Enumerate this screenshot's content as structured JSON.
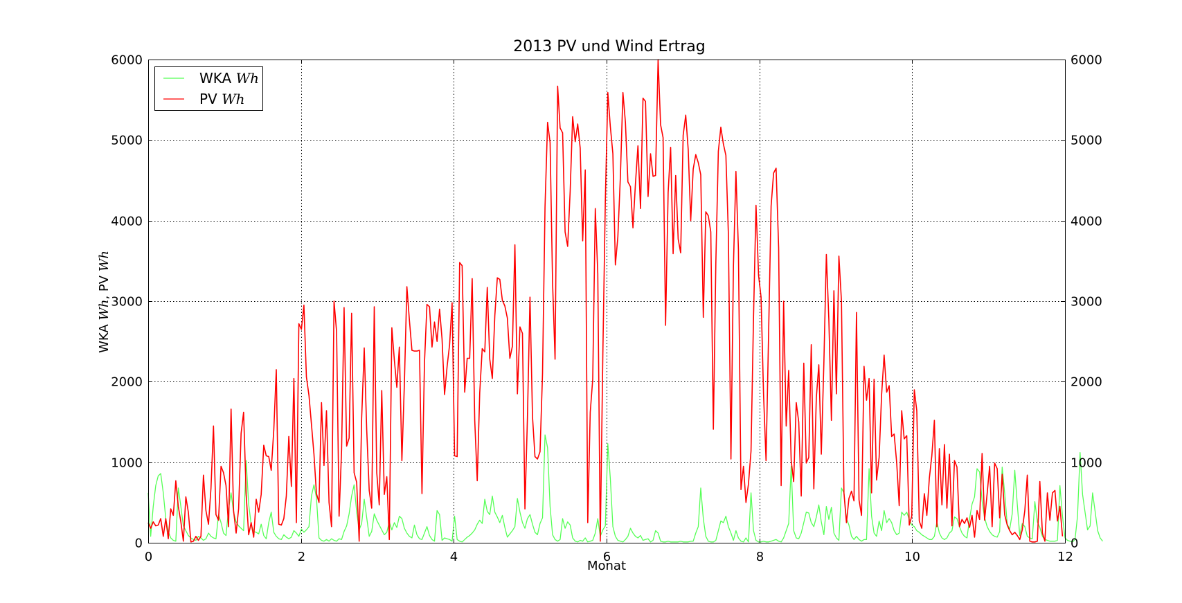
{
  "chart_data": {
    "type": "line",
    "title": "2013 PV und Wind Ertrag",
    "xlabel": "Monat",
    "ylabel": "WKA Wh, PV Wh",
    "ylabel_parts": {
      "pre1": "WKA ",
      "math1": "Wh",
      "mid": ", PV ",
      "math2": "Wh"
    },
    "xlim": [
      0,
      12
    ],
    "ylim": [
      0,
      6000
    ],
    "x_ticks": [
      "0",
      "2",
      "4",
      "6",
      "8",
      "10",
      "12"
    ],
    "y_ticks": [
      "0",
      "1000",
      "2000",
      "3000",
      "4000",
      "5000",
      "6000"
    ],
    "y_ticks_right": [
      "0",
      "1000",
      "2000",
      "3000",
      "4000",
      "5000",
      "6000"
    ],
    "grid": true,
    "legend_position": "top-left",
    "x_step": 0.0328767,
    "series": [
      {
        "name": "WKA Wh",
        "label_text": "WKA ",
        "label_math": "Wh",
        "color": "#55ff55",
        "values": [
          620,
          80,
          450,
          710,
          830,
          860,
          620,
          300,
          140,
          60,
          30,
          20,
          680,
          450,
          210,
          150,
          90,
          60,
          40,
          30,
          80,
          60,
          30,
          50,
          120,
          80,
          60,
          50,
          350,
          250,
          120,
          90,
          420,
          620,
          380,
          260,
          210,
          180,
          150,
          1020,
          480,
          230,
          140,
          130,
          110,
          230,
          90,
          50,
          250,
          380,
          130,
          80,
          50,
          40,
          100,
          70,
          50,
          70,
          150,
          120,
          80,
          170,
          130,
          160,
          200,
          580,
          720,
          560,
          60,
          30,
          20,
          40,
          20,
          50,
          30,
          20,
          50,
          40,
          140,
          210,
          360,
          580,
          720,
          380,
          160,
          240,
          540,
          310,
          80,
          140,
          360,
          280,
          220,
          160,
          100,
          130,
          260,
          160,
          250,
          190,
          330,
          300,
          180,
          120,
          80,
          60,
          220,
          100,
          50,
          40,
          120,
          200,
          90,
          40,
          20,
          400,
          350,
          30,
          60,
          50,
          40,
          20,
          330,
          40,
          20,
          10,
          40,
          70,
          90,
          120,
          160,
          230,
          280,
          240,
          540,
          390,
          350,
          580,
          380,
          320,
          250,
          340,
          190,
          70,
          110,
          150,
          200,
          550,
          380,
          250,
          180,
          300,
          350,
          230,
          130,
          100,
          240,
          310,
          1340,
          1180,
          450,
          100,
          40,
          20,
          40,
          300,
          180,
          260,
          220,
          60,
          20,
          10,
          30,
          20,
          60,
          10,
          20,
          30,
          120,
          300,
          80,
          160,
          210,
          1230,
          800,
          200,
          80,
          30,
          20,
          10,
          40,
          80,
          180,
          120,
          80,
          60,
          90,
          30,
          40,
          50,
          10,
          30,
          150,
          120,
          20,
          10,
          10,
          20,
          10,
          10,
          10,
          10,
          20,
          10,
          10,
          10,
          20,
          20,
          120,
          200,
          680,
          300,
          80,
          20,
          10,
          10,
          30,
          150,
          270,
          250,
          330,
          200,
          120,
          30,
          150,
          60,
          20,
          10,
          60,
          10,
          620,
          150,
          30,
          10,
          10,
          20,
          10,
          10,
          20,
          30,
          40,
          20,
          10,
          60,
          150,
          240,
          950,
          150,
          60,
          50,
          120,
          250,
          380,
          370,
          250,
          200,
          320,
          470,
          260,
          100,
          450,
          290,
          440,
          120,
          60,
          30,
          680,
          620,
          300,
          220,
          80,
          40,
          80,
          40,
          20,
          40,
          40,
          920,
          330,
          120,
          80,
          270,
          150,
          400,
          250,
          300,
          250,
          150,
          100,
          120,
          380,
          340,
          380,
          290,
          220,
          200,
          150,
          130,
          100,
          80,
          60,
          40,
          40,
          80,
          260,
          120,
          60,
          40,
          60,
          120,
          150,
          320,
          300,
          200,
          120,
          80,
          60,
          300,
          480,
          570,
          920,
          880,
          520,
          310,
          200,
          140,
          100,
          80,
          70,
          140,
          940,
          620,
          230,
          170,
          360,
          900,
          480,
          90,
          240,
          200,
          80,
          60,
          50,
          510,
          260,
          190,
          80,
          40,
          30,
          20,
          20,
          20,
          30,
          710,
          330,
          60,
          30,
          20,
          10,
          40,
          330,
          1120,
          600,
          380,
          160,
          210,
          620,
          390,
          150,
          60,
          20
        ]
      },
      {
        "name": "PV Wh",
        "label_text": "PV ",
        "label_math": "Wh",
        "color": "#ff0000",
        "values": [
          250,
          180,
          260,
          210,
          220,
          300,
          80,
          300,
          50,
          420,
          340,
          770,
          450,
          260,
          20,
          570,
          380,
          10,
          20,
          80,
          30,
          80,
          840,
          400,
          230,
          680,
          1450,
          350,
          280,
          950,
          870,
          710,
          200,
          1660,
          400,
          120,
          420,
          1360,
          1620,
          600,
          100,
          250,
          70,
          540,
          380,
          600,
          1210,
          1080,
          1070,
          900,
          1400,
          2150,
          230,
          220,
          300,
          580,
          1320,
          700,
          2040,
          250,
          2720,
          2650,
          2950,
          2060,
          1830,
          1470,
          1100,
          610,
          500,
          1740,
          960,
          1640,
          500,
          200,
          3000,
          2620,
          330,
          1150,
          2920,
          1200,
          1300,
          2850,
          870,
          750,
          20,
          1550,
          2420,
          1400,
          650,
          430,
          2930,
          870,
          470,
          1890,
          600,
          820,
          40,
          2670,
          2270,
          1930,
          2430,
          1020,
          1980,
          3180,
          2770,
          2390,
          2380,
          2380,
          2390,
          610,
          2230,
          2960,
          2930,
          2430,
          2740,
          2500,
          2900,
          2530,
          1840,
          2190,
          2460,
          2980,
          1080,
          1070,
          3480,
          3440,
          1870,
          2290,
          2290,
          3280,
          1520,
          770,
          1860,
          2410,
          2370,
          3170,
          2280,
          2040,
          2820,
          3290,
          3270,
          3010,
          2940,
          2790,
          2290,
          2440,
          3700,
          1850,
          2680,
          2600,
          420,
          1550,
          3050,
          1570,
          1070,
          1040,
          1130,
          2100,
          4170,
          5220,
          4970,
          3230,
          2280,
          5670,
          5150,
          5090,
          3860,
          3680,
          4360,
          5290,
          4980,
          5200,
          4900,
          3750,
          4630,
          250,
          1620,
          2030,
          4150,
          3340,
          20,
          2340,
          4250,
          5590,
          5170,
          4830,
          3450,
          3800,
          4560,
          5590,
          5220,
          4480,
          4420,
          3910,
          4460,
          4930,
          4150,
          5520,
          5480,
          4300,
          4830,
          4550,
          4560,
          6000,
          5190,
          5030,
          2700,
          4350,
          4910,
          3590,
          4560,
          3770,
          3600,
          5060,
          5310,
          4880,
          4000,
          4640,
          4820,
          4720,
          4570,
          2800,
          4110,
          4060,
          3860,
          1410,
          3480,
          4860,
          5160,
          4950,
          4810,
          3830,
          1040,
          3440,
          4610,
          3640,
          660,
          950,
          500,
          730,
          1140,
          2800,
          4190,
          3320,
          3050,
          1840,
          1020,
          2600,
          4180,
          4590,
          4650,
          3660,
          710,
          3000,
          1450,
          2140,
          1020,
          760,
          1740,
          1500,
          580,
          2230,
          990,
          1060,
          2460,
          670,
          1800,
          2210,
          1100,
          2230,
          3580,
          2770,
          1520,
          3130,
          1850,
          3560,
          3000,
          620,
          250,
          550,
          640,
          520,
          2860,
          530,
          340,
          2190,
          1770,
          2040,
          620,
          2030,
          780,
          1060,
          1840,
          2330,
          1870,
          1950,
          1320,
          1350,
          990,
          460,
          1640,
          1290,
          1330,
          220,
          330,
          1900,
          1640,
          270,
          180,
          610,
          340,
          800,
          1080,
          1520,
          200,
          1170,
          470,
          1220,
          430,
          1100,
          210,
          1020,
          940,
          200,
          290,
          240,
          310,
          190,
          340,
          70,
          400,
          290,
          1110,
          280,
          610,
          950,
          200,
          990,
          920,
          310,
          850,
          350,
          220,
          150,
          100,
          130,
          90,
          40,
          160,
          400,
          840,
          20,
          10,
          10,
          20,
          760,
          120,
          20,
          620,
          280,
          620,
          650,
          270,
          450,
          80
        ]
      }
    ]
  }
}
